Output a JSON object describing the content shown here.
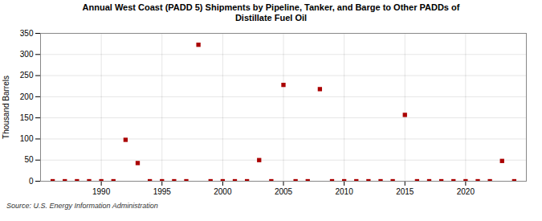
{
  "chart_data": {
    "type": "scatter",
    "title": "Annual West Coast (PADD 5) Shipments by Pipeline, Tanker, and Barge to Other PADDs of\nDistillate Fuel Oil",
    "ylabel": "Thousand Barrels",
    "source": "Source: U.S. Energy Information Administration",
    "x": [
      1986,
      1987,
      1988,
      1989,
      1990,
      1991,
      1992,
      1993,
      1994,
      1995,
      1996,
      1997,
      1998,
      1999,
      2000,
      2001,
      2002,
      2003,
      2004,
      2005,
      2006,
      2007,
      2008,
      2009,
      2010,
      2011,
      2012,
      2013,
      2014,
      2015,
      2016,
      2017,
      2018,
      2019,
      2020,
      2021,
      2022,
      2023,
      2024
    ],
    "values": [
      0,
      0,
      0,
      0,
      0,
      0,
      98,
      43,
      0,
      0,
      0,
      0,
      323,
      0,
      0,
      0,
      0,
      50,
      0,
      228,
      0,
      0,
      218,
      0,
      0,
      0,
      0,
      0,
      0,
      157,
      0,
      0,
      0,
      0,
      0,
      0,
      0,
      48,
      0
    ],
    "color": "#aa0000",
    "marker": "square",
    "xlim": [
      1985,
      2025
    ],
    "ylim": [
      0,
      350
    ],
    "xticks": [
      1990,
      1995,
      2000,
      2005,
      2010,
      2015,
      2020
    ],
    "yticks": [
      0,
      50,
      100,
      150,
      200,
      250,
      300,
      350
    ],
    "grid": true
  }
}
